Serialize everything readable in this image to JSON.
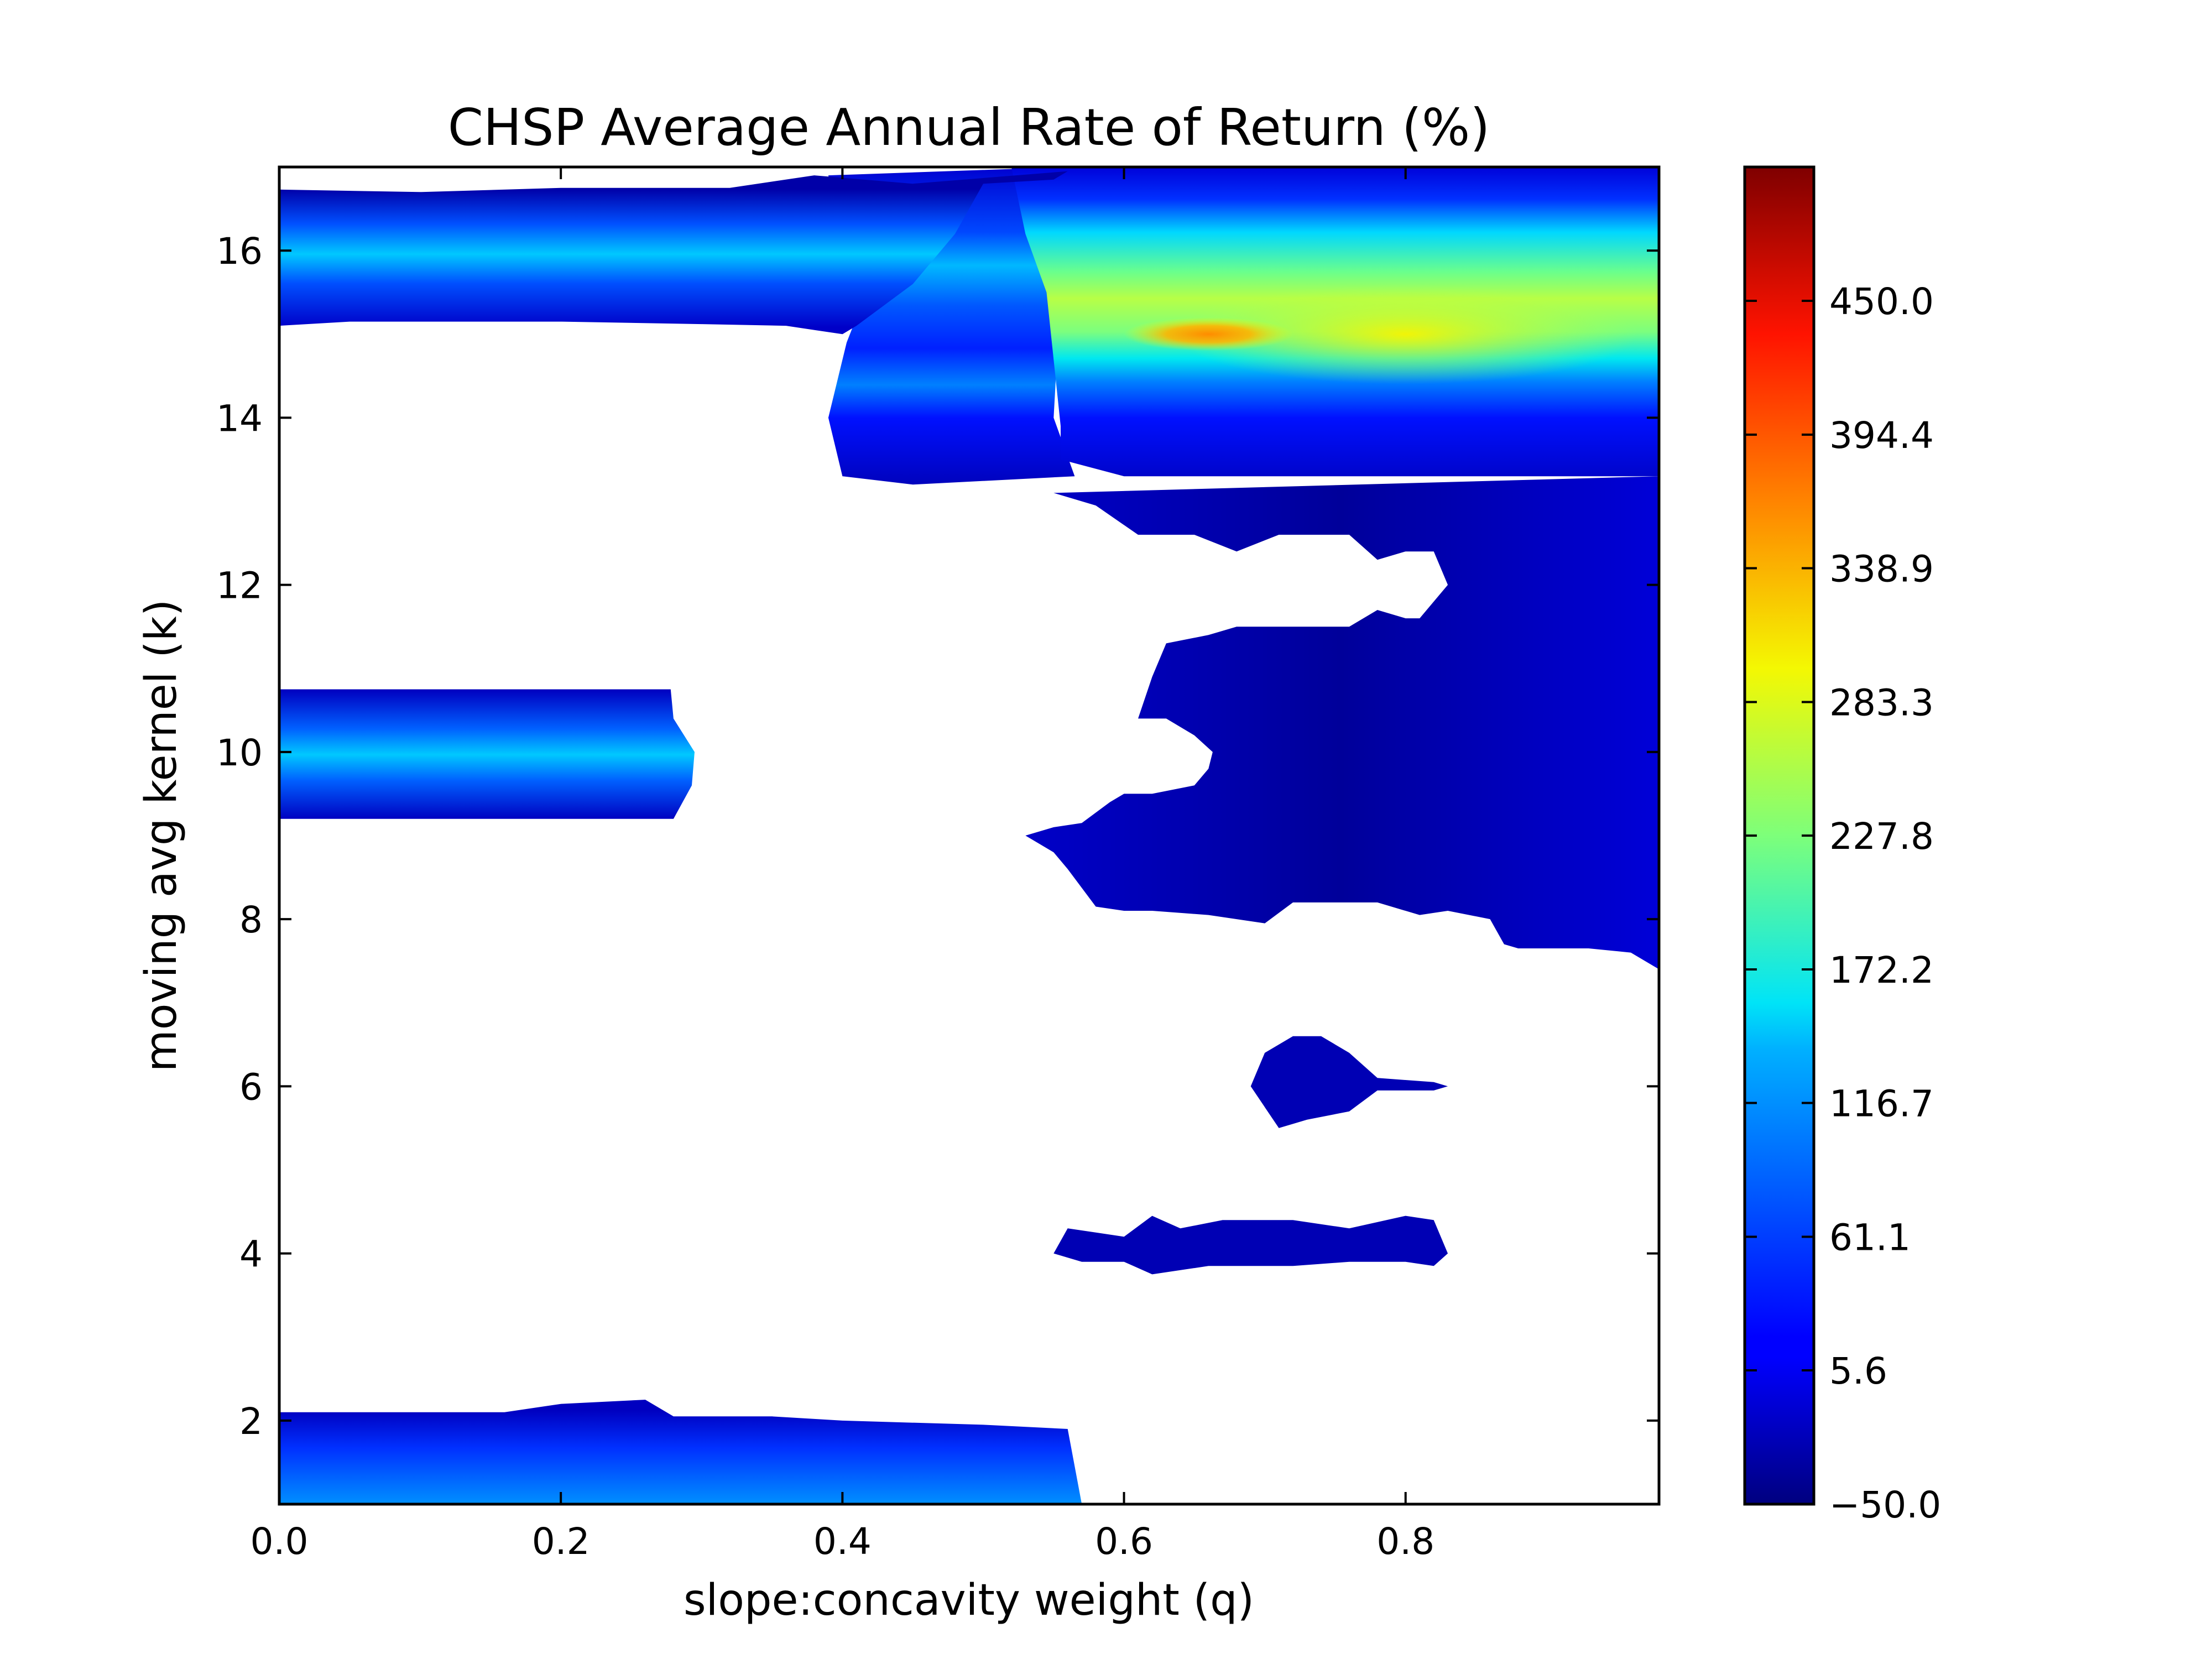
{
  "chart_data": {
    "type": "contourf",
    "title": "CHSP Average Annual Rate of Return (%)",
    "xlabel": "slope:concavity weight (q)",
    "ylabel": "moving avg kernel (k)",
    "xlim": [
      0.0,
      0.98
    ],
    "ylim": [
      1,
      17
    ],
    "x_ticks": [
      "0.0",
      "0.2",
      "0.4",
      "0.6",
      "0.8"
    ],
    "y_ticks": [
      "2",
      "4",
      "6",
      "8",
      "10",
      "12",
      "14",
      "16"
    ],
    "colormap": "jet",
    "colorbar": {
      "range": [
        -50.0,
        505.6
      ],
      "ticks": [
        "−50.0",
        "5.6",
        "61.1",
        "116.7",
        "172.2",
        "227.8",
        "283.3",
        "338.9",
        "394.4",
        "450.0"
      ]
    },
    "regions": [
      {
        "k_range": [
          15.1,
          16.75
        ],
        "q_range": [
          0.0,
          0.98
        ],
        "peak_k": 16,
        "peak_value": 110
      },
      {
        "k_range": [
          13.3,
          16.9
        ],
        "q_range": [
          0.39,
          0.98
        ],
        "hotspot": {
          "q": 0.66,
          "k": 15,
          "value": 370
        },
        "high_band_value": 300
      },
      {
        "k_range": [
          9.2,
          10.75
        ],
        "q_range": [
          0.0,
          0.29
        ],
        "peak_k": 10,
        "peak_value": 110
      },
      {
        "k_range": [
          7.4,
          13.3
        ],
        "q_range": [
          0.53,
          0.98
        ],
        "value": -20
      },
      {
        "k_range": [
          5.5,
          6.6
        ],
        "q_range": [
          0.69,
          0.83
        ],
        "value": -30
      },
      {
        "k_range": [
          3.75,
          4.45
        ],
        "q_range": [
          0.55,
          0.83
        ],
        "value": -30
      },
      {
        "k_range": [
          1.0,
          2.1
        ],
        "q_range": [
          0.0,
          0.57
        ],
        "peak_k": 1,
        "peak_value": 100
      }
    ]
  }
}
